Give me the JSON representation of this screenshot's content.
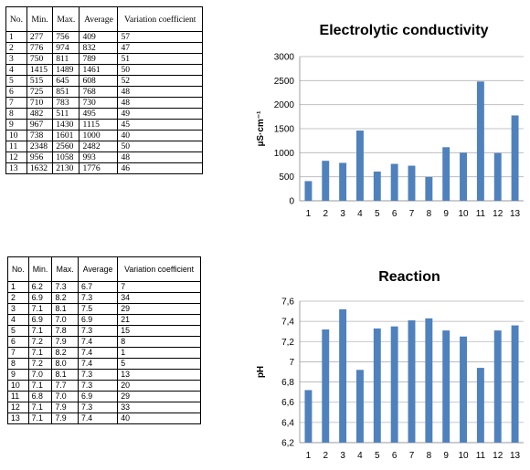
{
  "table1": {
    "headers": [
      "No.",
      "Min.",
      "Max.",
      "Average",
      "Variation coefficient"
    ],
    "rows": [
      [
        "1",
        "277",
        "756",
        "409",
        "57"
      ],
      [
        "2",
        "776",
        "974",
        "832",
        "47"
      ],
      [
        "3",
        "750",
        "811",
        "789",
        "51"
      ],
      [
        "4",
        "1415",
        "1489",
        "1461",
        "50"
      ],
      [
        "5",
        "515",
        "645",
        "608",
        "52"
      ],
      [
        "6",
        "725",
        "851",
        "768",
        "48"
      ],
      [
        "7",
        "710",
        "783",
        "730",
        "48"
      ],
      [
        "8",
        "482",
        "511",
        "495",
        "49"
      ],
      [
        "9",
        "967",
        "1430",
        "1115",
        "45"
      ],
      [
        "10",
        "738",
        "1601",
        "1000",
        "40"
      ],
      [
        "11",
        "2348",
        "2560",
        "2482",
        "50"
      ],
      [
        "12",
        "956",
        "1058",
        "993",
        "48"
      ],
      [
        "13",
        "1632",
        "2130",
        "1776",
        "46"
      ]
    ]
  },
  "table2": {
    "headers": [
      "No.",
      "Min.",
      "Max.",
      "Average",
      "Variation coefficient"
    ],
    "rows": [
      [
        "1",
        "6.2",
        "7.3",
        "6.7",
        "7"
      ],
      [
        "2",
        "6.9",
        "8.2",
        "7.3",
        "34"
      ],
      [
        "3",
        "7.1",
        "8.1",
        "7.5",
        "29"
      ],
      [
        "4",
        "6.9",
        "7.0",
        "6.9",
        "21"
      ],
      [
        "5",
        "7.1",
        "7.8",
        "7.3",
        "15"
      ],
      [
        "6",
        "7.2",
        "7.9",
        "7.4",
        "8"
      ],
      [
        "7",
        "7.1",
        "8.2",
        "7.4",
        "1"
      ],
      [
        "8",
        "7.2",
        "8.0",
        "7.4",
        "5"
      ],
      [
        "9",
        "7.0",
        "8.1",
        "7.3",
        "13"
      ],
      [
        "10",
        "7.1",
        "7.7",
        "7.3",
        "20"
      ],
      [
        "11",
        "6.8",
        "7.0",
        "6.9",
        "29"
      ],
      [
        "12",
        "7.1",
        "7.9",
        "7.3",
        "33"
      ],
      [
        "13",
        "7.1",
        "7.9",
        "7.4",
        "40"
      ]
    ]
  },
  "chart_data": [
    {
      "type": "bar",
      "title": "Electrolytic conductivity",
      "xlabel": "",
      "ylabel": "µS·cm⁻¹",
      "categories": [
        "1",
        "2",
        "3",
        "4",
        "5",
        "6",
        "7",
        "8",
        "9",
        "10",
        "11",
        "12",
        "13"
      ],
      "values": [
        409,
        832,
        789,
        1461,
        608,
        768,
        730,
        495,
        1115,
        1000,
        2482,
        993,
        1776
      ],
      "ylim": [
        0,
        3000
      ],
      "yticks": [
        0,
        500,
        1000,
        1500,
        2000,
        2500,
        3000
      ],
      "ytick_labels": [
        "0",
        "500",
        "1000",
        "1500",
        "2000",
        "2500",
        "3000"
      ],
      "grid": true,
      "bar_color": "#4f81bd"
    },
    {
      "type": "bar",
      "title": "Reaction",
      "xlabel": "",
      "ylabel": "pH",
      "categories": [
        "1",
        "2",
        "3",
        "4",
        "5",
        "6",
        "7",
        "8",
        "9",
        "10",
        "11",
        "12",
        "13"
      ],
      "values": [
        6.72,
        7.32,
        7.52,
        6.92,
        7.33,
        7.35,
        7.41,
        7.43,
        7.31,
        7.25,
        6.94,
        7.31,
        7.36
      ],
      "ylim": [
        6.2,
        7.6
      ],
      "yticks": [
        6.2,
        6.4,
        6.6,
        6.8,
        7.0,
        7.2,
        7.4,
        7.6
      ],
      "ytick_labels": [
        "6,2",
        "6,4",
        "6,6",
        "6,8",
        "7",
        "7,2",
        "7,4",
        "7,6"
      ],
      "grid": true,
      "bar_color": "#4f81bd"
    }
  ]
}
